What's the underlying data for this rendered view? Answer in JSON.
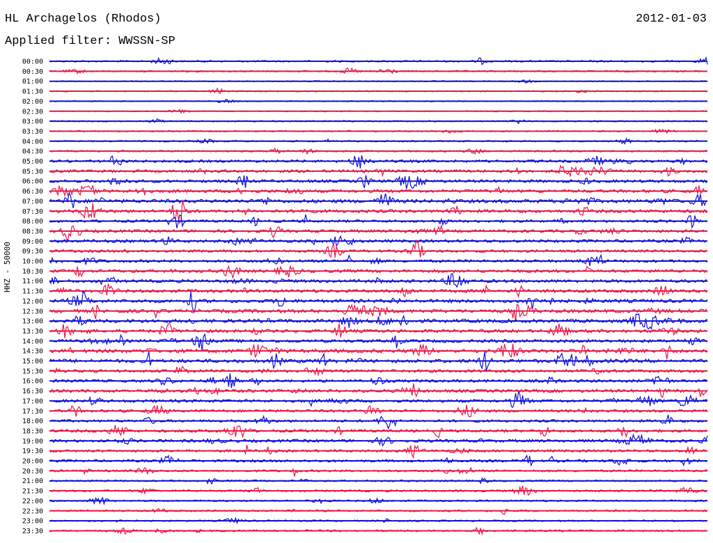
{
  "header": {
    "station": "HL Archagelos (Rhodos)",
    "date": "2012-01-03",
    "filter_text": "Applied filter: WWSSN-SP"
  },
  "colors": {
    "blue": "#1010d8",
    "red": "#e8194a"
  },
  "chart_data": {
    "type": "line",
    "title": "HL Archagelos (Rhodos)",
    "subtitle": "Applied filter: WWSSN-SP",
    "ylabel": "HHZ - 50000",
    "xlabel": "",
    "grid": false,
    "legend": "none",
    "series_colors": [
      "#1010d8",
      "#e8194a"
    ],
    "rows": [
      {
        "label": "00:00",
        "amplitude": 0.3
      },
      {
        "label": "00:30",
        "amplitude": 0.25
      },
      {
        "label": "01:00",
        "amplitude": 0.12
      },
      {
        "label": "01:30",
        "amplitude": 0.15
      },
      {
        "label": "02:00",
        "amplitude": 0.1
      },
      {
        "label": "02:30",
        "amplitude": 0.12
      },
      {
        "label": "03:00",
        "amplitude": 0.2
      },
      {
        "label": "03:30",
        "amplitude": 0.2
      },
      {
        "label": "04:00",
        "amplitude": 0.25
      },
      {
        "label": "04:30",
        "amplitude": 0.3
      },
      {
        "label": "05:00",
        "amplitude": 0.6
      },
      {
        "label": "05:30",
        "amplitude": 0.65
      },
      {
        "label": "06:00",
        "amplitude": 0.7
      },
      {
        "label": "06:30",
        "amplitude": 0.75
      },
      {
        "label": "07:00",
        "amplitude": 0.9
      },
      {
        "label": "07:30",
        "amplitude": 0.8
      },
      {
        "label": "08:00",
        "amplitude": 0.6
      },
      {
        "label": "08:30",
        "amplitude": 0.7
      },
      {
        "label": "09:00",
        "amplitude": 0.7
      },
      {
        "label": "09:30",
        "amplitude": 0.6
      },
      {
        "label": "10:00",
        "amplitude": 0.65
      },
      {
        "label": "10:30",
        "amplitude": 0.75
      },
      {
        "label": "11:00",
        "amplitude": 0.75
      },
      {
        "label": "11:30",
        "amplitude": 0.8
      },
      {
        "label": "12:00",
        "amplitude": 0.85
      },
      {
        "label": "12:30",
        "amplitude": 0.9
      },
      {
        "label": "13:00",
        "amplitude": 0.9
      },
      {
        "label": "13:30",
        "amplitude": 0.8
      },
      {
        "label": "14:00",
        "amplitude": 0.75
      },
      {
        "label": "14:30",
        "amplitude": 0.95
      },
      {
        "label": "15:00",
        "amplitude": 0.9
      },
      {
        "label": "15:30",
        "amplitude": 0.7
      },
      {
        "label": "16:00",
        "amplitude": 0.65
      },
      {
        "label": "16:30",
        "amplitude": 0.75
      },
      {
        "label": "17:00",
        "amplitude": 0.7
      },
      {
        "label": "17:30",
        "amplitude": 0.6
      },
      {
        "label": "18:00",
        "amplitude": 0.55
      },
      {
        "label": "18:30",
        "amplitude": 0.65
      },
      {
        "label": "19:00",
        "amplitude": 0.7
      },
      {
        "label": "19:30",
        "amplitude": 0.55
      },
      {
        "label": "20:00",
        "amplitude": 0.55
      },
      {
        "label": "20:30",
        "amplitude": 0.45
      },
      {
        "label": "21:00",
        "amplitude": 0.3
      },
      {
        "label": "21:30",
        "amplitude": 0.4
      },
      {
        "label": "22:00",
        "amplitude": 0.3
      },
      {
        "label": "22:30",
        "amplitude": 0.3
      },
      {
        "label": "23:00",
        "amplitude": 0.25
      },
      {
        "label": "23:30",
        "amplitude": 0.35
      }
    ]
  }
}
